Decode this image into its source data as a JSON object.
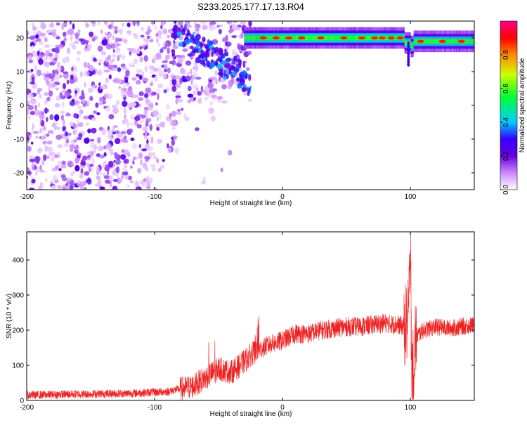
{
  "figure_title": "S233.2025.177.17.13.R04",
  "chart_data": [
    {
      "type": "heatmap",
      "title": "S233.2025.177.17.13.R04",
      "xlabel": "Height of straight line (km)",
      "ylabel": "Frequency (Hz)",
      "xlim": [
        -200,
        150
      ],
      "ylim": [
        -25,
        25
      ],
      "x_ticks": [
        {
          "value": -200,
          "label": "-200"
        },
        {
          "value": -100,
          "label": "-100"
        },
        {
          "value": 0,
          "label": "0"
        },
        {
          "value": 100,
          "label": "100"
        }
      ],
      "y_ticks": [
        {
          "value": -20,
          "label": "-20"
        },
        {
          "value": -10,
          "label": "-10"
        },
        {
          "value": 0,
          "label": "0"
        },
        {
          "value": 10,
          "label": "10"
        },
        {
          "value": 20,
          "label": "20"
        }
      ],
      "colorbar": {
        "label": "Normalized spectral amplitude",
        "range": [
          0,
          1
        ],
        "ticks": [
          {
            "value": 0.0,
            "label": "0.0"
          },
          {
            "value": 0.2,
            "label": "0.2"
          },
          {
            "value": 0.4,
            "label": "0.4"
          },
          {
            "value": 0.6,
            "label": "0.6"
          },
          {
            "value": 0.8,
            "label": "0.8"
          }
        ],
        "colormap": [
          "#ffffff",
          "#cc88ff",
          "#6600dd",
          "#3300ff",
          "#00ccff",
          "#00ff33",
          "#ccff00",
          "#ff8800",
          "#ff0000",
          "#ff0088"
        ]
      },
      "features": [
        {
          "name": "noise",
          "x_range": [
            -200,
            -30
          ],
          "freq_range": [
            -25,
            25
          ],
          "amplitude": 0.15
        },
        {
          "name": "tone",
          "x_range": [
            -30,
            150
          ],
          "freq": 20,
          "amplitude": 0.8
        }
      ],
      "grid": false
    },
    {
      "type": "line",
      "xlabel": "Height of straight line (km)",
      "ylabel": "SNR (10 * v/v)",
      "xlim": [
        -200,
        150
      ],
      "ylim": [
        0,
        480
      ],
      "x_ticks": [
        {
          "value": -200,
          "label": "-200"
        },
        {
          "value": -100,
          "label": "-100"
        },
        {
          "value": 0,
          "label": "0"
        },
        {
          "value": 100,
          "label": "100"
        }
      ],
      "y_ticks": [
        {
          "value": 0,
          "label": "0"
        },
        {
          "value": 100,
          "label": "100"
        },
        {
          "value": 200,
          "label": "200"
        },
        {
          "value": 300,
          "label": "300"
        },
        {
          "value": 400,
          "label": "400"
        }
      ],
      "series_color": "#ee2222",
      "x": [
        -200,
        -160,
        -120,
        -90,
        -70,
        -50,
        -40,
        -30,
        -25,
        -20,
        -10,
        0,
        10,
        20,
        30,
        40,
        50,
        60,
        70,
        80,
        90,
        95,
        98,
        100,
        101,
        102,
        104,
        110,
        120,
        130,
        140,
        150
      ],
      "y": [
        15,
        18,
        20,
        25,
        40,
        90,
        80,
        110,
        130,
        140,
        160,
        170,
        190,
        190,
        200,
        205,
        210,
        210,
        215,
        220,
        215,
        210,
        220,
        390,
        100,
        80,
        180,
        200,
        210,
        205,
        210,
        215
      ],
      "grid": false
    }
  ]
}
